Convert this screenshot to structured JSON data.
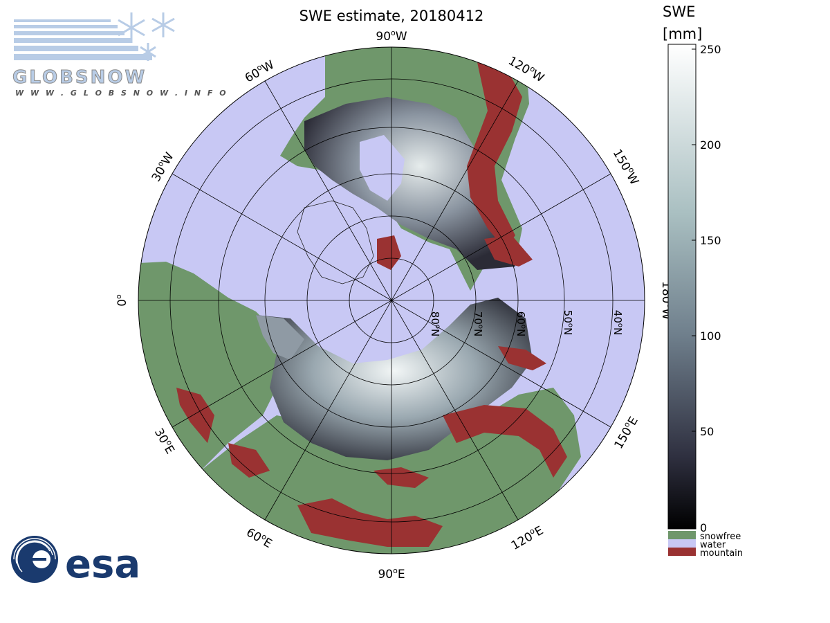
{
  "title": "SWE estimate, 20180412",
  "colorbar": {
    "title_line1": "SWE",
    "title_line2": "[mm]",
    "ticks": [
      "250",
      "200",
      "150",
      "100",
      "50",
      "0"
    ],
    "categories": [
      {
        "label": "snowfree",
        "color": "#6f976b"
      },
      {
        "label": "water",
        "color": "#c8c8f4"
      },
      {
        "label": "mountain",
        "color": "#9a3232"
      }
    ],
    "gradient_top_color": "#ffffff",
    "gradient_mid_color": "#869ea6",
    "gradient_bottom_color": "#000000"
  },
  "longitude_labels": {
    "w90": "90",
    "w60": "60",
    "w30": "30",
    "zero": "0",
    "w120": "120",
    "w150": "150",
    "w180": "180",
    "e30": "30",
    "e60": "60",
    "e90": "90",
    "e120": "120",
    "e150": "150",
    "suffix_w": "W",
    "suffix_e": "E",
    "degree": "o"
  },
  "latitude_labels": {
    "n80": "80",
    "n70": "70",
    "n60": "60",
    "n50": "50",
    "n40": "40",
    "suffix": "N",
    "degree": "o"
  },
  "logos": {
    "globsnow_wordmark": "GLOBSNOW",
    "globsnow_url": "W W W . G L O B S N O W . I N F O",
    "esa_wordmark": "esa"
  },
  "colors": {
    "water": "#c8c8f4",
    "snowfree": "#6f976b",
    "mountain": "#9a3232",
    "snow_dark": "#2a2a34",
    "snow_light": "#e8eeee"
  }
}
